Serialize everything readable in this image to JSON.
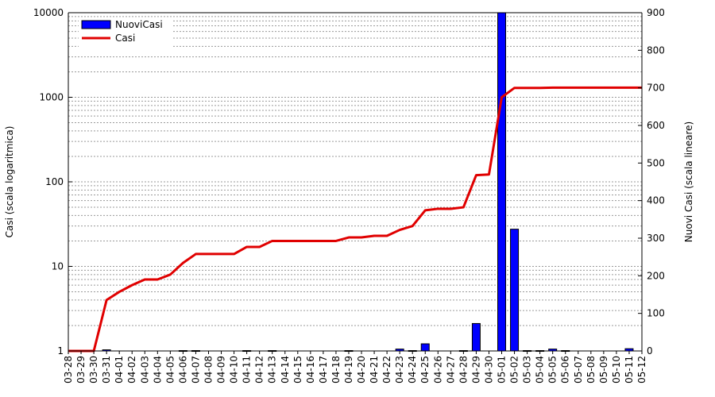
{
  "chart_data": {
    "type": "bar+line",
    "categories": [
      "03-28",
      "03-29",
      "03-30",
      "03-31",
      "04-01",
      "04-02",
      "04-03",
      "04-04",
      "04-05",
      "04-06",
      "04-07",
      "04-08",
      "04-09",
      "04-10",
      "04-11",
      "04-12",
      "04-13",
      "04-14",
      "04-15",
      "04-16",
      "04-17",
      "04-18",
      "04-19",
      "04-20",
      "04-21",
      "04-22",
      "04-23",
      "04-24",
      "04-25",
      "04-26",
      "04-27",
      "04-28",
      "04-29",
      "04-30",
      "05-01",
      "05-02",
      "05-03",
      "05-04",
      "05-05",
      "05-06",
      "05-07",
      "05-08",
      "05-09",
      "05-10",
      "05-11",
      "05-12"
    ],
    "series": [
      {
        "name": "NuoviCasi",
        "kind": "bar",
        "axis": "right",
        "color": "#0000ff",
        "values": [
          0,
          0,
          0,
          3,
          0,
          0,
          0,
          0,
          0,
          1,
          1,
          0,
          0,
          0,
          1,
          0,
          1,
          0,
          0,
          0,
          0,
          0,
          1,
          0,
          0,
          0,
          5,
          1,
          19,
          0,
          0,
          1,
          73,
          0,
          900,
          324,
          1,
          1,
          5,
          1,
          0,
          0,
          0,
          0,
          6,
          0
        ]
      },
      {
        "name": "Casi",
        "kind": "line",
        "axis": "left",
        "color": "#e00000",
        "values": [
          1,
          1,
          1,
          4,
          5,
          6,
          7,
          7,
          8,
          11,
          14,
          14,
          14,
          14,
          17,
          17,
          20,
          20,
          20,
          20,
          20,
          20,
          22,
          22,
          23,
          23,
          27,
          30,
          46,
          48,
          48,
          50,
          120,
          122,
          1000,
          1290,
          1290,
          1290,
          1300,
          1300,
          1300,
          1300,
          1300,
          1300,
          1300,
          1300
        ]
      }
    ],
    "ylabel": "Casi (scala logaritmica)",
    "y2label": "Nuovi Casi (scala lineare)",
    "ylim": [
      1,
      10000
    ],
    "yscale": "log",
    "y_ticks": [
      "1",
      "10",
      "100",
      "1000",
      "10000"
    ],
    "y2lim": [
      0,
      900
    ],
    "y2_ticks": [
      "0",
      "100",
      "200",
      "300",
      "400",
      "500",
      "600",
      "700",
      "800",
      "900"
    ],
    "grid": true,
    "legend_position": "top-left"
  }
}
